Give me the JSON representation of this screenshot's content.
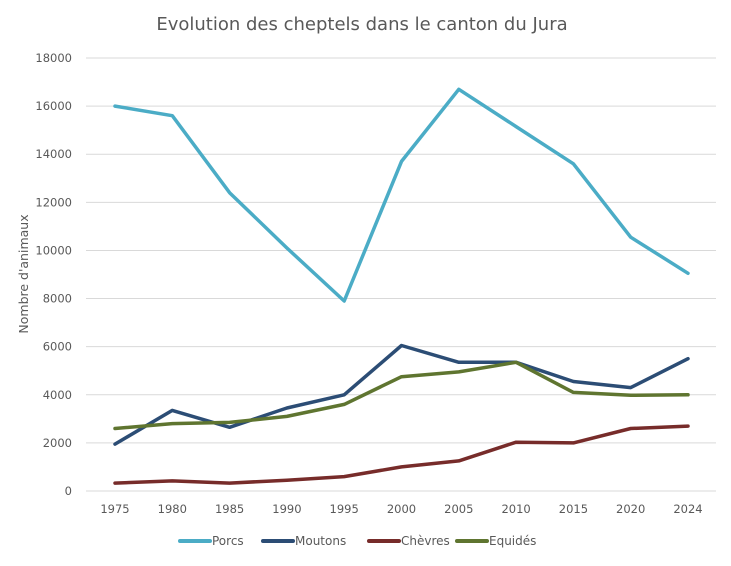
{
  "chart_data": {
    "type": "line",
    "title": "Evolution des cheptels dans le canton du Jura",
    "xlabel": "",
    "ylabel": "Nombre d'animaux",
    "ylim": [
      0,
      18000
    ],
    "yticks": [
      "0",
      "2000",
      "4000",
      "6000",
      "8000",
      "10000",
      "12000",
      "14000",
      "16000",
      "18000"
    ],
    "ytick_values": [
      0,
      2000,
      4000,
      6000,
      8000,
      10000,
      12000,
      14000,
      16000,
      18000
    ],
    "grid": true,
    "legend_position": "bottom",
    "categories": [
      "1975",
      "1980",
      "1985",
      "1990",
      "1995",
      "2000",
      "2005",
      "2010",
      "2015",
      "2020",
      "2024"
    ],
    "series": [
      {
        "name": "Porcs",
        "color": "#4bacc6",
        "values": [
          16000,
          15600,
          12400,
          10100,
          7900,
          13700,
          16700,
          15150,
          13600,
          10550,
          9050
        ]
      },
      {
        "name": "Moutons",
        "color": "#2c4d75",
        "values": [
          1950,
          3350,
          2650,
          3450,
          4000,
          6050,
          5350,
          5350,
          4550,
          4300,
          5500
        ]
      },
      {
        "name": "Chèvres",
        "color": "#772c2a",
        "values": [
          330,
          420,
          330,
          450,
          600,
          1000,
          1250,
          2030,
          2000,
          2600,
          2700
        ]
      },
      {
        "name": "Equidés",
        "color": "#5f7530",
        "values": [
          2600,
          2800,
          2850,
          3100,
          3600,
          4750,
          4950,
          5350,
          4100,
          3980,
          4000
        ]
      }
    ]
  }
}
